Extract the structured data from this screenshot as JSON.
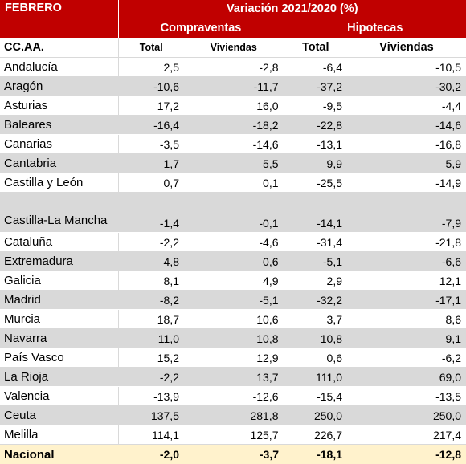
{
  "header": {
    "month": "FEBRERO",
    "variation": "Variación 2021/2020 (%)",
    "group_compraventas": "Compraventas",
    "group_hipotecas": "Hipotecas"
  },
  "subheader": {
    "region": "CC.AA.",
    "comp_total": "Total",
    "comp_viviendas": "Viviendas",
    "hip_total": "Total",
    "hip_viviendas": "Viviendas"
  },
  "rows": [
    {
      "name": "Andalucía",
      "comp_total": "2,5",
      "comp_viv": "-2,8",
      "hip_total": "-6,4",
      "hip_viv": "-10,5"
    },
    {
      "name": "Aragón",
      "comp_total": "-10,6",
      "comp_viv": "-11,7",
      "hip_total": "-37,2",
      "hip_viv": "-30,2"
    },
    {
      "name": "Asturias",
      "comp_total": "17,2",
      "comp_viv": "16,0",
      "hip_total": "-9,5",
      "hip_viv": "-4,4"
    },
    {
      "name": "Baleares",
      "comp_total": "-16,4",
      "comp_viv": "-18,2",
      "hip_total": "-22,8",
      "hip_viv": "-14,6"
    },
    {
      "name": "Canarias",
      "comp_total": "-3,5",
      "comp_viv": "-14,6",
      "hip_total": "-13,1",
      "hip_viv": "-16,8"
    },
    {
      "name": "Cantabria",
      "comp_total": "1,7",
      "comp_viv": "5,5",
      "hip_total": "9,9",
      "hip_viv": "5,9"
    },
    {
      "name": "Castilla y León",
      "comp_total": "0,7",
      "comp_viv": "0,1",
      "hip_total": "-25,5",
      "hip_viv": "-14,9"
    },
    {
      "name": "Castilla-La Mancha",
      "comp_total": "-1,4",
      "comp_viv": "-0,1",
      "hip_total": "-14,1",
      "hip_viv": "-7,9"
    },
    {
      "name": "Cataluña",
      "comp_total": "-2,2",
      "comp_viv": "-4,6",
      "hip_total": "-31,4",
      "hip_viv": "-21,8"
    },
    {
      "name": "Extremadura",
      "comp_total": "4,8",
      "comp_viv": "0,6",
      "hip_total": "-5,1",
      "hip_viv": "-6,6"
    },
    {
      "name": "Galicia",
      "comp_total": "8,1",
      "comp_viv": "4,9",
      "hip_total": "2,9",
      "hip_viv": "12,1"
    },
    {
      "name": "Madrid",
      "comp_total": "-8,2",
      "comp_viv": "-5,1",
      "hip_total": "-32,2",
      "hip_viv": "-17,1"
    },
    {
      "name": "Murcia",
      "comp_total": "18,7",
      "comp_viv": "10,6",
      "hip_total": "3,7",
      "hip_viv": "8,6"
    },
    {
      "name": "Navarra",
      "comp_total": "11,0",
      "comp_viv": "10,8",
      "hip_total": "10,8",
      "hip_viv": "9,1"
    },
    {
      "name": "País Vasco",
      "comp_total": "15,2",
      "comp_viv": "12,9",
      "hip_total": "0,6",
      "hip_viv": "-6,2"
    },
    {
      "name": "La Rioja",
      "comp_total": "-2,2",
      "comp_viv": "13,7",
      "hip_total": "111,0",
      "hip_viv": "69,0"
    },
    {
      "name": "Valencia",
      "comp_total": "-13,9",
      "comp_viv": "-12,6",
      "hip_total": "-15,4",
      "hip_viv": "-13,5"
    },
    {
      "name": "Ceuta",
      "comp_total": "137,5",
      "comp_viv": "281,8",
      "hip_total": "250,0",
      "hip_viv": "250,0"
    },
    {
      "name": "Melilla",
      "comp_total": "114,1",
      "comp_viv": "125,7",
      "hip_total": "226,7",
      "hip_viv": "217,4"
    }
  ],
  "national": {
    "name": "Nacional",
    "comp_total": "-2,0",
    "comp_viv": "-3,7",
    "hip_total": "-18,1",
    "hip_viv": "-12,8"
  },
  "colors": {
    "header_red": "#c00000",
    "stripe_gray": "#d9d9d9",
    "national_yellow": "#fff2cc"
  }
}
